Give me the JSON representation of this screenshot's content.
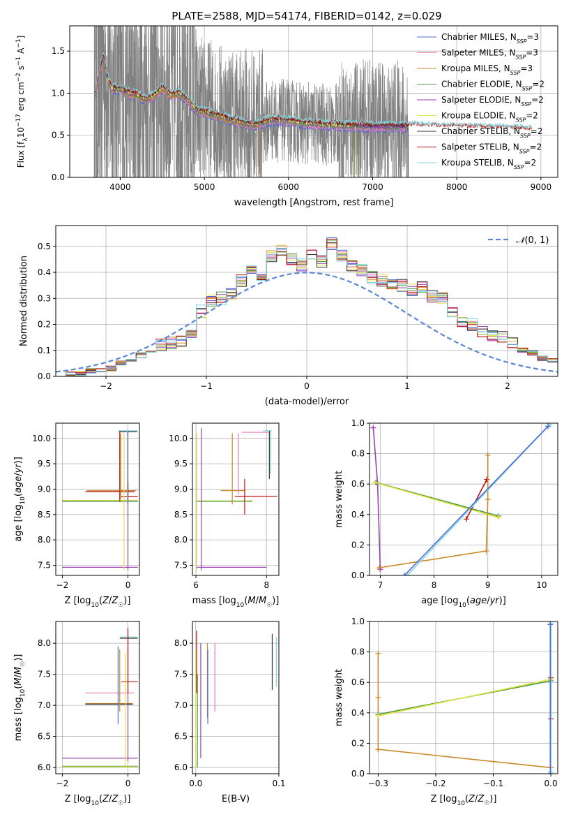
{
  "figure": {
    "title": "PLATE=2588, MJD=54174, FIBERID=0142, z=0.029"
  },
  "legend_labels": [
    "Chabrier MILES, N_SSP=3",
    "Salpeter MILES, N_SSP=3",
    "Kroupa MILES, N_SSP=3",
    "Chabrier ELODIE, N_SSP=2",
    "Salpeter ELODIE, N_SSP=2",
    "Kroupa ELODIE, N_SSP=2",
    "Chabrier STELIB, N_SSP=2",
    "Salpeter STELIB, N_SSP=2",
    "Kroupa STELIB, N_SSP=2"
  ],
  "colors": [
    "#4b6bd6",
    "#e87bb7",
    "#c9892a",
    "#4a9a3e",
    "#9b3fb5",
    "#e4e440",
    "#333333",
    "#b81414",
    "#7fd6dc"
  ],
  "chart_data": [
    {
      "id": "spectrum",
      "type": "line",
      "xlabel": "wavelength [Angstrom, rest frame]",
      "ylabel": "Flux [f_λ10^-17 erg cm^-2 s^-1 A^-1]",
      "xlim": [
        3400,
        9200
      ],
      "ylim": [
        0,
        1.8
      ],
      "xticks": [
        4000,
        5000,
        6000,
        7000,
        8000,
        9000
      ],
      "yticks": [
        0.0,
        0.5,
        1.0,
        1.5
      ],
      "grid": true,
      "legend": "upper right",
      "data_wavelength_range": [
        3690,
        7420
      ],
      "model_wavelength_range": [
        3700,
        8900
      ],
      "model_curve": {
        "x": [
          3700,
          3800,
          3850,
          3900,
          4000,
          4100,
          4200,
          4300,
          4400,
          4500,
          4600,
          4700,
          4800,
          4900,
          5000,
          5200,
          5400,
          5600,
          5800,
          6000,
          6200,
          6500,
          7000,
          7500,
          8000,
          8500,
          8900
        ],
        "y": [
          1.0,
          1.45,
          1.2,
          1.05,
          1.05,
          1.0,
          0.98,
          0.92,
          0.97,
          1.06,
          0.98,
          1.0,
          0.92,
          0.8,
          0.78,
          0.72,
          0.66,
          0.62,
          0.68,
          0.67,
          0.64,
          0.62,
          0.6,
          0.6,
          0.58,
          0.57,
          0.55
        ]
      }
    },
    {
      "id": "residuals",
      "type": "histogram",
      "xlabel": "(data-model)/error",
      "ylabel": "Normed distribution",
      "xlim": [
        -2.5,
        2.5
      ],
      "ylim": [
        0,
        0.58
      ],
      "xticks": [
        -2,
        -1,
        0,
        1,
        2
      ],
      "yticks": [
        0.0,
        0.1,
        0.2,
        0.3,
        0.4,
        0.5
      ],
      "grid": true,
      "legend": "upper right",
      "legend_label": "N(0,1)",
      "bin_width": 0.1,
      "bin_start": -2.5,
      "base_heights": [
        0.0,
        0.01,
        0.01,
        0.02,
        0.02,
        0.03,
        0.05,
        0.06,
        0.08,
        0.1,
        0.12,
        0.13,
        0.14,
        0.16,
        0.25,
        0.29,
        0.3,
        0.32,
        0.37,
        0.4,
        0.38,
        0.46,
        0.49,
        0.45,
        0.43,
        0.47,
        0.44,
        0.51,
        0.46,
        0.43,
        0.41,
        0.38,
        0.37,
        0.36,
        0.35,
        0.33,
        0.34,
        0.31,
        0.3,
        0.24,
        0.21,
        0.2,
        0.17,
        0.16,
        0.15,
        0.13,
        0.1,
        0.09,
        0.07,
        0.06,
        0.05,
        0.05,
        0.04,
        0.03,
        0.02,
        0.02
      ]
    },
    {
      "id": "age_vs_Z",
      "type": "errorbar",
      "xlabel": "Z [log10(Z/Z☉)]",
      "ylabel": "age [log10(age/yr)]",
      "xlim": [
        -2.2,
        0.35
      ],
      "ylim": [
        7.3,
        10.3
      ],
      "xticks": [
        -2,
        0
      ],
      "yticks": [
        7.5,
        8.0,
        8.5,
        9.0,
        9.5,
        10.0
      ],
      "grid": true,
      "segments": [
        {
          "c": 0,
          "x1": -2.0,
          "x2": 0.3,
          "y": 8.77
        },
        {
          "c": 5,
          "x1": -2.0,
          "x2": 0.3,
          "y": 8.78
        },
        {
          "c": 3,
          "x1": -2.0,
          "x2": 0.3,
          "y": 8.76
        },
        {
          "c": 4,
          "x1": -2.0,
          "x2": 0.3,
          "y": 7.46
        },
        {
          "c": 2,
          "x1": -1.25,
          "x2": 0.25,
          "y": 8.97
        },
        {
          "c": 7,
          "x1": -1.3,
          "x2": 0.2,
          "y": 8.95
        },
        {
          "c": 8,
          "x1": -0.3,
          "x2": 0.3,
          "y": 10.15
        },
        {
          "c": 6,
          "x1": -0.25,
          "x2": 0.28,
          "y": 10.13
        },
        {
          "c": 7,
          "x1": -0.2,
          "x2": 0.3,
          "y": 8.85
        }
      ],
      "vsegments": [
        {
          "c": 7,
          "x": -0.25,
          "y1": 8.75,
          "y2": 10.15
        },
        {
          "c": 2,
          "x": -0.22,
          "y1": 8.8,
          "y2": 10.1
        },
        {
          "c": 5,
          "x": -0.12,
          "y1": 7.4,
          "y2": 10.1
        },
        {
          "c": 4,
          "x": 0.0,
          "y1": 7.4,
          "y2": 10.15
        },
        {
          "c": 7,
          "x": 0.0,
          "y1": 8.8,
          "y2": 9.15
        },
        {
          "c": 8,
          "x": -0.02,
          "y1": 8.7,
          "y2": 10.15
        }
      ]
    },
    {
      "id": "age_vs_mass",
      "type": "errorbar",
      "xlabel": "mass [log10(M/M☉)]",
      "ylabel": "",
      "xlim": [
        5.9,
        8.35
      ],
      "ylim": [
        7.3,
        10.3
      ],
      "xticks": [
        6,
        8
      ],
      "yticks": [
        7.5,
        8.0,
        8.5,
        9.0,
        9.5,
        10.0
      ],
      "grid": true,
      "segments": [
        {
          "c": 5,
          "x1": 6.0,
          "x2": 7.6,
          "y": 8.77
        },
        {
          "c": 3,
          "x1": 6.0,
          "x2": 7.6,
          "y": 8.76
        },
        {
          "c": 4,
          "x1": 6.0,
          "x2": 8.0,
          "y": 7.46
        },
        {
          "c": 2,
          "x1": 6.7,
          "x2": 7.4,
          "y": 8.97
        },
        {
          "c": 7,
          "x1": 7.1,
          "x2": 8.3,
          "y": 8.86
        },
        {
          "c": 1,
          "x1": 7.3,
          "x2": 8.1,
          "y": 10.12
        },
        {
          "c": 8,
          "x1": 7.9,
          "x2": 8.15,
          "y": 10.15
        }
      ],
      "vsegments": [
        {
          "c": 5,
          "x": 6.02,
          "y1": 7.4,
          "y2": 10.1
        },
        {
          "c": 4,
          "x": 6.15,
          "y1": 7.4,
          "y2": 10.2
        },
        {
          "c": 2,
          "x": 7.03,
          "y1": 8.7,
          "y2": 10.1
        },
        {
          "c": 1,
          "x": 7.2,
          "y1": 8.9,
          "y2": 10.1
        },
        {
          "c": 7,
          "x": 7.38,
          "y1": 8.5,
          "y2": 9.2
        },
        {
          "c": 6,
          "x": 8.08,
          "y1": 9.2,
          "y2": 10.15
        },
        {
          "c": 8,
          "x": 8.12,
          "y1": 9.3,
          "y2": 10.15
        }
      ]
    },
    {
      "id": "massweight_vs_age",
      "type": "line",
      "xlabel": "age [log10(age/yr)]",
      "ylabel": "mass weight",
      "xlim": [
        6.8,
        10.3
      ],
      "ylim": [
        0,
        1.0
      ],
      "xticks": [
        7,
        8,
        9,
        10
      ],
      "yticks": [
        0.0,
        0.2,
        0.4,
        0.6,
        0.8,
        1.0
      ],
      "grid": true,
      "series": [
        {
          "c": 4,
          "x": [
            6.87,
            6.95,
            7.0
          ],
          "y": [
            0.97,
            0.6,
            0.04
          ]
        },
        {
          "c": 3,
          "x": [
            6.92,
            9.2
          ],
          "y": [
            0.61,
            0.39
          ]
        },
        {
          "c": 5,
          "x": [
            6.9,
            9.2
          ],
          "y": [
            0.61,
            0.38
          ]
        },
        {
          "c": 7,
          "x": [
            8.6,
            8.98
          ],
          "y": [
            0.37,
            0.63
          ]
        },
        {
          "c": 2,
          "x": [
            6.98,
            8.97,
            9.0,
            9.0
          ],
          "y": [
            0.05,
            0.16,
            0.5,
            0.79
          ]
        },
        {
          "c": 8,
          "x": [
            7.5,
            10.15
          ],
          "y": [
            0.0,
            0.99
          ]
        },
        {
          "c": 0,
          "x": [
            7.45,
            10.12
          ],
          "y": [
            0.0,
            0.98
          ]
        }
      ]
    },
    {
      "id": "mass_vs_Z",
      "type": "errorbar",
      "xlabel": "Z [log10(Z/Z☉)]",
      "ylabel": "mass [log10(M/M☉)]",
      "xlim": [
        -2.2,
        0.35
      ],
      "ylim": [
        5.9,
        8.35
      ],
      "xticks": [
        -2,
        0
      ],
      "yticks": [
        6.0,
        6.5,
        7.0,
        7.5,
        8.0
      ],
      "grid": true,
      "segments": [
        {
          "c": 4,
          "x1": -2.0,
          "x2": 0.3,
          "y": 6.15
        },
        {
          "c": 3,
          "x1": -2.0,
          "x2": 0.3,
          "y": 6.02
        },
        {
          "c": 5,
          "x1": -2.0,
          "x2": 0.3,
          "y": 6.01
        },
        {
          "c": 1,
          "x1": -1.3,
          "x2": 0.2,
          "y": 7.2
        },
        {
          "c": 2,
          "x1": -1.3,
          "x2": 0.15,
          "y": 7.03
        },
        {
          "c": 6,
          "x1": -1.3,
          "x2": 0.15,
          "y": 7.02
        },
        {
          "c": 7,
          "x1": -0.2,
          "x2": 0.3,
          "y": 7.38
        },
        {
          "c": 8,
          "x1": -0.25,
          "x2": 0.3,
          "y": 8.1
        },
        {
          "c": 6,
          "x1": -0.25,
          "x2": 0.3,
          "y": 8.08
        }
      ],
      "vsegments": [
        {
          "c": 0,
          "x": -0.3,
          "y1": 6.7,
          "y2": 7.95
        },
        {
          "c": 2,
          "x": -0.25,
          "y1": 6.9,
          "y2": 7.9
        },
        {
          "c": 5,
          "x": -0.08,
          "y1": 6.0,
          "y2": 7.85
        },
        {
          "c": 4,
          "x": 0.0,
          "y1": 6.1,
          "y2": 8.15
        },
        {
          "c": 7,
          "x": 0.0,
          "y1": 7.2,
          "y2": 8.25
        }
      ]
    },
    {
      "id": "mass_vs_ebv",
      "type": "errorbar",
      "xlabel": "E(B-V)",
      "ylabel": "",
      "xlim": [
        -0.004,
        0.1
      ],
      "ylim": [
        5.9,
        8.35
      ],
      "xticks": [
        0.0,
        0.1
      ],
      "yticks": [
        6.0,
        6.5,
        7.0,
        7.5,
        8.0
      ],
      "grid": true,
      "vsegments": [
        {
          "c": 5,
          "x": 0.0,
          "y1": 6.0,
          "y2": 7.9
        },
        {
          "c": 7,
          "x": 0.001,
          "y1": 7.2,
          "y2": 8.2
        },
        {
          "c": 3,
          "x": 0.002,
          "y1": 6.0,
          "y2": 7.5
        },
        {
          "c": 4,
          "x": 0.006,
          "y1": 6.15,
          "y2": 8.0
        },
        {
          "c": 2,
          "x": 0.014,
          "y1": 6.8,
          "y2": 8.0
        },
        {
          "c": 0,
          "x": 0.0145,
          "y1": 6.7,
          "y2": 7.9
        },
        {
          "c": 1,
          "x": 0.023,
          "y1": 6.9,
          "y2": 8.0
        },
        {
          "c": 6,
          "x": 0.092,
          "y1": 7.25,
          "y2": 8.15
        },
        {
          "c": 8,
          "x": 0.097,
          "y1": 7.3,
          "y2": 8.1
        }
      ]
    },
    {
      "id": "massweight_vs_Z",
      "type": "line",
      "xlabel": "Z [log10(Z/Z☉)]",
      "ylabel": "mass weight",
      "xlim": [
        -0.315,
        0.012
      ],
      "ylim": [
        0,
        1.0
      ],
      "xticks": [
        -0.3,
        -0.2,
        -0.1,
        0.0
      ],
      "yticks": [
        0.0,
        0.2,
        0.4,
        0.6,
        0.8,
        1.0
      ],
      "grid": true,
      "series": [
        {
          "c": 2,
          "x": [
            -0.3,
            -0.3,
            -0.3
          ],
          "y": [
            0.79,
            0.5,
            0.16
          ]
        },
        {
          "c": 2,
          "x": [
            -0.3,
            0.0
          ],
          "y": [
            0.16,
            0.04
          ]
        },
        {
          "c": 3,
          "x": [
            -0.3,
            0.0
          ],
          "y": [
            0.39,
            0.61
          ]
        },
        {
          "c": 5,
          "x": [
            -0.3,
            0.0
          ],
          "y": [
            0.38,
            0.62
          ]
        },
        {
          "c": 7,
          "x": [
            0.0,
            0.0
          ],
          "y": [
            0.36,
            0.63
          ]
        },
        {
          "c": 8,
          "x": [
            0.0,
            0.0
          ],
          "y": [
            0.01,
            0.99
          ]
        },
        {
          "c": 0,
          "x": [
            -0.001,
            -0.001
          ],
          "y": [
            0.0,
            0.98
          ]
        }
      ]
    }
  ]
}
